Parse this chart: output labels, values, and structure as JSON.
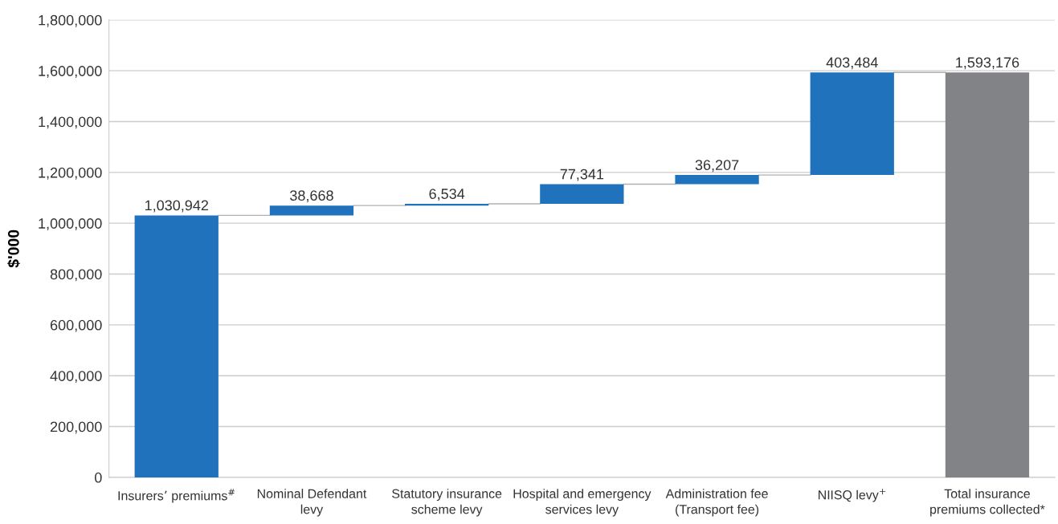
{
  "chart_data": {
    "type": "bar",
    "ylabel": "$'000",
    "categories": [
      "Insurers’ premiums$^{#}$",
      "Nominal Defendant\nlevy",
      "Statutory insurance\nscheme levy",
      "Hospital and emergency\nservices levy",
      "Administration fee\n(Transport fee)",
      "NIISQ levy$^{+}$",
      "Total insurance\npremiums collected*"
    ],
    "values": [
      1030942,
      38668,
      6534,
      77341,
      36207,
      403484,
      1593176
    ],
    "base": [
      0,
      1030942,
      1069610,
      1076144,
      1153485,
      1189692,
      0
    ],
    "colors": [
      "#1f72bb",
      "#1f72bb",
      "#1f72bb",
      "#1f72bb",
      "#1f72bb",
      "#1f72bb",
      "#828386"
    ],
    "value_labels": [
      "1,030,942",
      "38,668",
      "6,534",
      "77,341",
      "36,207",
      "403,484",
      "1,593,176"
    ],
    "ylim": [
      0,
      1800000
    ],
    "yticks": [
      {
        "value": 0,
        "label": "0"
      },
      {
        "value": 200000,
        "label": "200,000"
      },
      {
        "value": 400000,
        "label": "400,000"
      },
      {
        "value": 600000,
        "label": "600,000"
      },
      {
        "value": 800000,
        "label": "800,000"
      },
      {
        "value": 1000000,
        "label": "1,000,000"
      },
      {
        "value": 1200000,
        "label": "1,200,000"
      },
      {
        "value": 1400000,
        "label": "1,400,000"
      },
      {
        "value": 1600000,
        "label": "1,600,000"
      },
      {
        "value": 1800000,
        "label": "1,800,000"
      }
    ],
    "grid": "y"
  }
}
